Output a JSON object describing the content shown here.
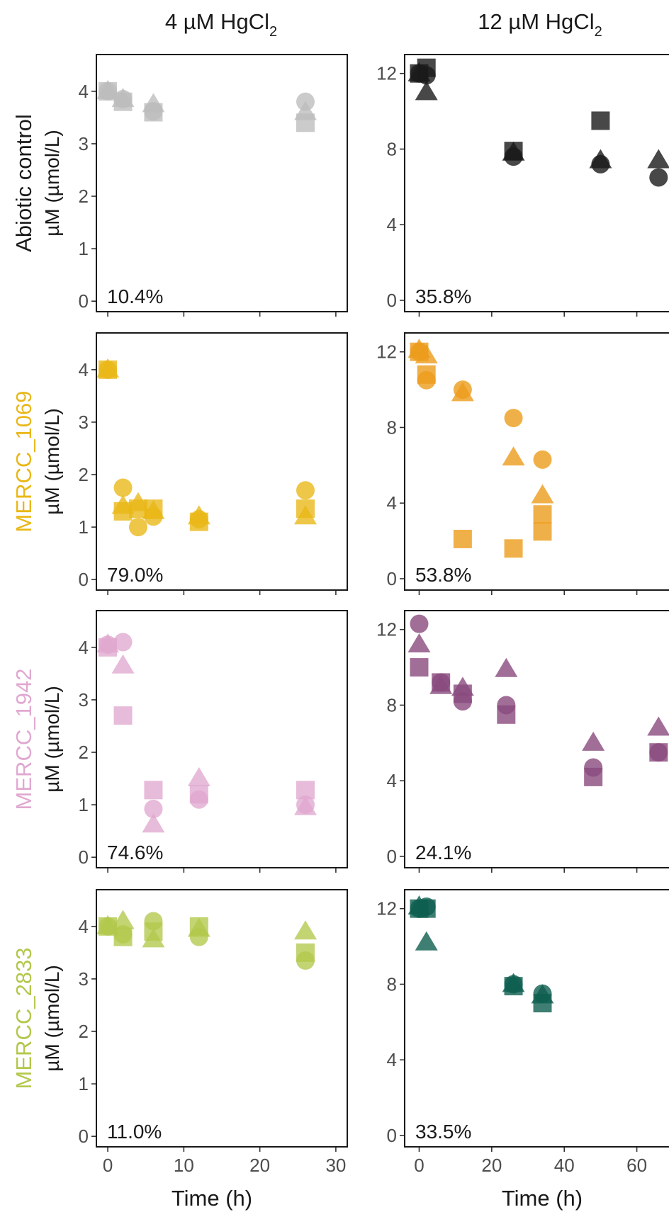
{
  "column_titles": [
    "4 µM HgCl",
    "12 µM HgCl"
  ],
  "column_title_subscript": "2",
  "y_axis_label": "µM (µmol/L)",
  "x_axis_label": "Time (h)",
  "chart_data": {
    "type": "scatter",
    "facets": {
      "columns": [
        "4 µM HgCl2",
        "12 µM HgCl2"
      ],
      "rows": [
        {
          "label": "Abiotic control",
          "color": "#bdbdbd",
          "dark_color": "#1a1a1a"
        },
        {
          "label": "MERCC_1069",
          "color": "#e9b716",
          "dark_color": "#ec9c1c"
        },
        {
          "label": "MERCC_1942",
          "color": "#e0a8d0",
          "dark_color": "#8a4a7e"
        },
        {
          "label": "MERCC_2833",
          "color": "#b2c84b",
          "dark_color": "#0f5f50"
        }
      ]
    },
    "x_ticks": [
      [
        0,
        10,
        20,
        30
      ],
      [
        0,
        20,
        40,
        60
      ]
    ],
    "xlim": [
      [
        -1.5,
        31.5
      ],
      [
        -4,
        72
      ]
    ],
    "y_ticks": [
      [
        0,
        1,
        2,
        3,
        4
      ],
      [
        0,
        4,
        8,
        12
      ]
    ],
    "ylim": [
      [
        -0.2,
        4.7
      ],
      [
        -0.6,
        13.0
      ]
    ],
    "shapes": [
      "circle",
      "triangle",
      "square"
    ],
    "panels": [
      {
        "row": 0,
        "col": 0,
        "label": "10.4%",
        "points": [
          {
            "x": 0,
            "y": 4.0,
            "s": "circle"
          },
          {
            "x": 0,
            "y": 4.0,
            "s": "triangle"
          },
          {
            "x": 0,
            "y": 4.0,
            "s": "square"
          },
          {
            "x": 2,
            "y": 3.85,
            "s": "circle"
          },
          {
            "x": 2,
            "y": 3.85,
            "s": "triangle"
          },
          {
            "x": 2,
            "y": 3.8,
            "s": "square"
          },
          {
            "x": 6,
            "y": 3.62,
            "s": "circle"
          },
          {
            "x": 6,
            "y": 3.75,
            "s": "triangle"
          },
          {
            "x": 6,
            "y": 3.6,
            "s": "square"
          },
          {
            "x": 26,
            "y": 3.8,
            "s": "circle"
          },
          {
            "x": 26,
            "y": 3.6,
            "s": "triangle"
          },
          {
            "x": 26,
            "y": 3.4,
            "s": "square"
          }
        ]
      },
      {
        "row": 0,
        "col": 1,
        "label": "35.8%",
        "points": [
          {
            "x": 0,
            "y": 12.0,
            "s": "circle"
          },
          {
            "x": 0,
            "y": 12.0,
            "s": "triangle"
          },
          {
            "x": 0,
            "y": 12.0,
            "s": "square"
          },
          {
            "x": 2,
            "y": 11.9,
            "s": "circle"
          },
          {
            "x": 2,
            "y": 11.0,
            "s": "triangle"
          },
          {
            "x": 2,
            "y": 12.3,
            "s": "square"
          },
          {
            "x": 26,
            "y": 7.6,
            "s": "circle"
          },
          {
            "x": 26,
            "y": 7.8,
            "s": "triangle"
          },
          {
            "x": 26,
            "y": 7.9,
            "s": "square"
          },
          {
            "x": 50,
            "y": 7.2,
            "s": "circle"
          },
          {
            "x": 50,
            "y": 7.4,
            "s": "triangle"
          },
          {
            "x": 50,
            "y": 9.5,
            "s": "square"
          },
          {
            "x": 66,
            "y": 6.5,
            "s": "circle"
          },
          {
            "x": 66,
            "y": 7.4,
            "s": "triangle"
          }
        ]
      },
      {
        "row": 1,
        "col": 0,
        "label": "79.0%",
        "points": [
          {
            "x": 0,
            "y": 4.0,
            "s": "circle"
          },
          {
            "x": 0,
            "y": 4.0,
            "s": "triangle"
          },
          {
            "x": 0,
            "y": 4.0,
            "s": "square"
          },
          {
            "x": 2,
            "y": 1.75,
            "s": "circle"
          },
          {
            "x": 2,
            "y": 1.4,
            "s": "triangle"
          },
          {
            "x": 2,
            "y": 1.3,
            "s": "square"
          },
          {
            "x": 4,
            "y": 1.0,
            "s": "circle"
          },
          {
            "x": 4,
            "y": 1.45,
            "s": "triangle"
          },
          {
            "x": 4,
            "y": 1.35,
            "s": "square"
          },
          {
            "x": 6,
            "y": 1.2,
            "s": "circle"
          },
          {
            "x": 6,
            "y": 1.3,
            "s": "triangle"
          },
          {
            "x": 6,
            "y": 1.35,
            "s": "square"
          },
          {
            "x": 12,
            "y": 1.15,
            "s": "circle"
          },
          {
            "x": 12,
            "y": 1.2,
            "s": "triangle"
          },
          {
            "x": 12,
            "y": 1.1,
            "s": "square"
          },
          {
            "x": 26,
            "y": 1.7,
            "s": "circle"
          },
          {
            "x": 26,
            "y": 1.2,
            "s": "triangle"
          },
          {
            "x": 26,
            "y": 1.35,
            "s": "square"
          }
        ]
      },
      {
        "row": 1,
        "col": 1,
        "label": "53.8%",
        "points": [
          {
            "x": 0,
            "y": 12.0,
            "s": "circle"
          },
          {
            "x": 0,
            "y": 12.1,
            "s": "triangle"
          },
          {
            "x": 0,
            "y": 12.0,
            "s": "square"
          },
          {
            "x": 2,
            "y": 10.5,
            "s": "circle"
          },
          {
            "x": 2,
            "y": 11.8,
            "s": "triangle"
          },
          {
            "x": 2,
            "y": 10.8,
            "s": "square"
          },
          {
            "x": 12,
            "y": 10.0,
            "s": "circle"
          },
          {
            "x": 12,
            "y": 9.8,
            "s": "triangle"
          },
          {
            "x": 12,
            "y": 2.1,
            "s": "square"
          },
          {
            "x": 26,
            "y": 8.5,
            "s": "circle"
          },
          {
            "x": 26,
            "y": 6.4,
            "s": "triangle"
          },
          {
            "x": 26,
            "y": 1.6,
            "s": "square"
          },
          {
            "x": 34,
            "y": 6.3,
            "s": "circle"
          },
          {
            "x": 34,
            "y": 4.4,
            "s": "triangle"
          },
          {
            "x": 34,
            "y": 3.4,
            "s": "square"
          },
          {
            "x": 34,
            "y": 2.5,
            "s": "square"
          }
        ]
      },
      {
        "row": 2,
        "col": 0,
        "label": "74.6%",
        "points": [
          {
            "x": 0,
            "y": 4.05,
            "s": "circle"
          },
          {
            "x": 0,
            "y": 4.05,
            "s": "triangle"
          },
          {
            "x": 0,
            "y": 4.0,
            "s": "square"
          },
          {
            "x": 2,
            "y": 4.1,
            "s": "circle"
          },
          {
            "x": 2,
            "y": 3.65,
            "s": "triangle"
          },
          {
            "x": 2,
            "y": 2.7,
            "s": "square"
          },
          {
            "x": 6,
            "y": 0.92,
            "s": "circle"
          },
          {
            "x": 6,
            "y": 0.62,
            "s": "triangle"
          },
          {
            "x": 6,
            "y": 1.28,
            "s": "square"
          },
          {
            "x": 12,
            "y": 1.1,
            "s": "circle"
          },
          {
            "x": 12,
            "y": 1.5,
            "s": "triangle"
          },
          {
            "x": 12,
            "y": 1.2,
            "s": "square"
          },
          {
            "x": 26,
            "y": 1.0,
            "s": "circle"
          },
          {
            "x": 26,
            "y": 0.95,
            "s": "triangle"
          },
          {
            "x": 26,
            "y": 1.28,
            "s": "square"
          }
        ]
      },
      {
        "row": 2,
        "col": 1,
        "label": "24.1%",
        "points": [
          {
            "x": 0,
            "y": 12.3,
            "s": "circle"
          },
          {
            "x": 0,
            "y": 11.2,
            "s": "triangle"
          },
          {
            "x": 0,
            "y": 10.0,
            "s": "square"
          },
          {
            "x": 6,
            "y": 9.2,
            "s": "circle"
          },
          {
            "x": 6,
            "y": 9.0,
            "s": "triangle"
          },
          {
            "x": 6,
            "y": 9.2,
            "s": "square"
          },
          {
            "x": 12,
            "y": 8.2,
            "s": "circle"
          },
          {
            "x": 12,
            "y": 8.9,
            "s": "triangle"
          },
          {
            "x": 12,
            "y": 8.6,
            "s": "square"
          },
          {
            "x": 24,
            "y": 8.0,
            "s": "circle"
          },
          {
            "x": 24,
            "y": 9.9,
            "s": "triangle"
          },
          {
            "x": 24,
            "y": 7.5,
            "s": "square"
          },
          {
            "x": 48,
            "y": 4.7,
            "s": "circle"
          },
          {
            "x": 48,
            "y": 6.0,
            "s": "triangle"
          },
          {
            "x": 48,
            "y": 4.2,
            "s": "square"
          },
          {
            "x": 66,
            "y": 5.5,
            "s": "circle"
          },
          {
            "x": 66,
            "y": 6.8,
            "s": "triangle"
          },
          {
            "x": 66,
            "y": 5.5,
            "s": "square"
          }
        ]
      },
      {
        "row": 3,
        "col": 0,
        "label": "11.0%",
        "points": [
          {
            "x": 0,
            "y": 4.0,
            "s": "circle"
          },
          {
            "x": 0,
            "y": 4.0,
            "s": "triangle"
          },
          {
            "x": 0,
            "y": 4.0,
            "s": "square"
          },
          {
            "x": 2,
            "y": 3.85,
            "s": "circle"
          },
          {
            "x": 2,
            "y": 4.1,
            "s": "triangle"
          },
          {
            "x": 2,
            "y": 3.8,
            "s": "square"
          },
          {
            "x": 6,
            "y": 4.1,
            "s": "circle"
          },
          {
            "x": 6,
            "y": 3.75,
            "s": "triangle"
          },
          {
            "x": 6,
            "y": 3.9,
            "s": "square"
          },
          {
            "x": 12,
            "y": 3.8,
            "s": "circle"
          },
          {
            "x": 12,
            "y": 3.95,
            "s": "triangle"
          },
          {
            "x": 12,
            "y": 4.0,
            "s": "square"
          },
          {
            "x": 26,
            "y": 3.35,
            "s": "circle"
          },
          {
            "x": 26,
            "y": 3.9,
            "s": "triangle"
          },
          {
            "x": 26,
            "y": 3.5,
            "s": "square"
          }
        ]
      },
      {
        "row": 3,
        "col": 1,
        "label": "33.5%",
        "points": [
          {
            "x": 0,
            "y": 12.0,
            "s": "circle"
          },
          {
            "x": 0,
            "y": 12.1,
            "s": "triangle"
          },
          {
            "x": 0,
            "y": 12.0,
            "s": "square"
          },
          {
            "x": 2,
            "y": 12.1,
            "s": "circle"
          },
          {
            "x": 2,
            "y": 10.2,
            "s": "triangle"
          },
          {
            "x": 2,
            "y": 12.0,
            "s": "square"
          },
          {
            "x": 26,
            "y": 8.0,
            "s": "circle"
          },
          {
            "x": 26,
            "y": 8.0,
            "s": "triangle"
          },
          {
            "x": 26,
            "y": 7.9,
            "s": "square"
          },
          {
            "x": 34,
            "y": 7.5,
            "s": "circle"
          },
          {
            "x": 34,
            "y": 7.4,
            "s": "triangle"
          },
          {
            "x": 34,
            "y": 7.0,
            "s": "square"
          }
        ]
      }
    ]
  }
}
